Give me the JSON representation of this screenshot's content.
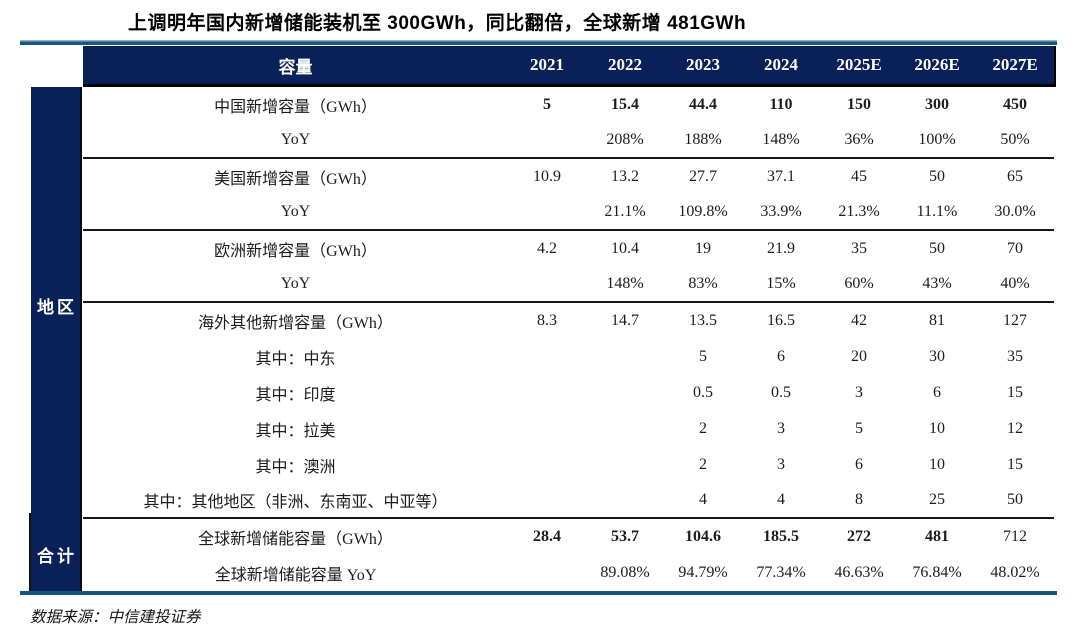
{
  "title": "上调明年国内新增储能装机至 300GWh，同比翻倍，全球新增 481GWh",
  "source_note": "数据来源：中信建投证券",
  "colors": {
    "header_navy": "#092158",
    "rule_steel_blue": "#16577f",
    "section_line_black": "#151515",
    "header_text": "#ffffff",
    "body_text": "#1c1c1c"
  },
  "chart_data": {
    "type": "table",
    "columns": [
      "容量",
      "2021",
      "2022",
      "2023",
      "2024",
      "2025E",
      "2026E",
      "2027E"
    ],
    "row_groups": [
      {
        "label": "地区",
        "rows": [
          0,
          11
        ]
      },
      {
        "label": "合计",
        "rows": [
          12,
          13
        ]
      }
    ],
    "rows": [
      {
        "label": "中国新增容量（GWh）",
        "values": [
          "5",
          "15.4",
          "44.4",
          "110",
          "150",
          "300",
          "450"
        ],
        "bold_cols": [
          0,
          1,
          2,
          3,
          4,
          5,
          6
        ]
      },
      {
        "label": "YoY",
        "values": [
          "",
          "208%",
          "188%",
          "148%",
          "36%",
          "100%",
          "50%"
        ],
        "section_end": true
      },
      {
        "label": "美国新增容量（GWh）",
        "values": [
          "10.9",
          "13.2",
          "27.7",
          "37.1",
          "45",
          "50",
          "65"
        ]
      },
      {
        "label": "YoY",
        "values": [
          "",
          "21.1%",
          "109.8%",
          "33.9%",
          "21.3%",
          "11.1%",
          "30.0%"
        ],
        "section_end": true
      },
      {
        "label": "欧洲新增容量（GWh）",
        "values": [
          "4.2",
          "10.4",
          "19",
          "21.9",
          "35",
          "50",
          "70"
        ]
      },
      {
        "label": "YoY",
        "values": [
          "",
          "148%",
          "83%",
          "15%",
          "60%",
          "43%",
          "40%"
        ],
        "section_end": true
      },
      {
        "label": "海外其他新增容量（GWh）",
        "values": [
          "8.3",
          "14.7",
          "13.5",
          "16.5",
          "42",
          "81",
          "127"
        ]
      },
      {
        "label": "其中：中东",
        "values": [
          "",
          "",
          "5",
          "6",
          "20",
          "30",
          "35"
        ]
      },
      {
        "label": "其中：印度",
        "values": [
          "",
          "",
          "0.5",
          "0.5",
          "3",
          "6",
          "15"
        ]
      },
      {
        "label": "其中：拉美",
        "values": [
          "",
          "",
          "2",
          "3",
          "5",
          "10",
          "12"
        ]
      },
      {
        "label": "其中：澳洲",
        "values": [
          "",
          "",
          "2",
          "3",
          "6",
          "10",
          "15"
        ]
      },
      {
        "label": "其中：其他地区（非洲、东南亚、中亚等）",
        "values": [
          "",
          "",
          "4",
          "4",
          "8",
          "25",
          "50"
        ],
        "section_end": true
      },
      {
        "label": "全球新增储能容量（GWh）",
        "values": [
          "28.4",
          "53.7",
          "104.6",
          "185.5",
          "272",
          "481",
          "712"
        ],
        "bold_cols": [
          0,
          1,
          2,
          3,
          4,
          5
        ]
      },
      {
        "label": "全球新增储能容量 YoY",
        "values": [
          "",
          "89.08%",
          "94.79%",
          "77.34%",
          "46.63%",
          "76.84%",
          "48.02%"
        ]
      }
    ]
  }
}
